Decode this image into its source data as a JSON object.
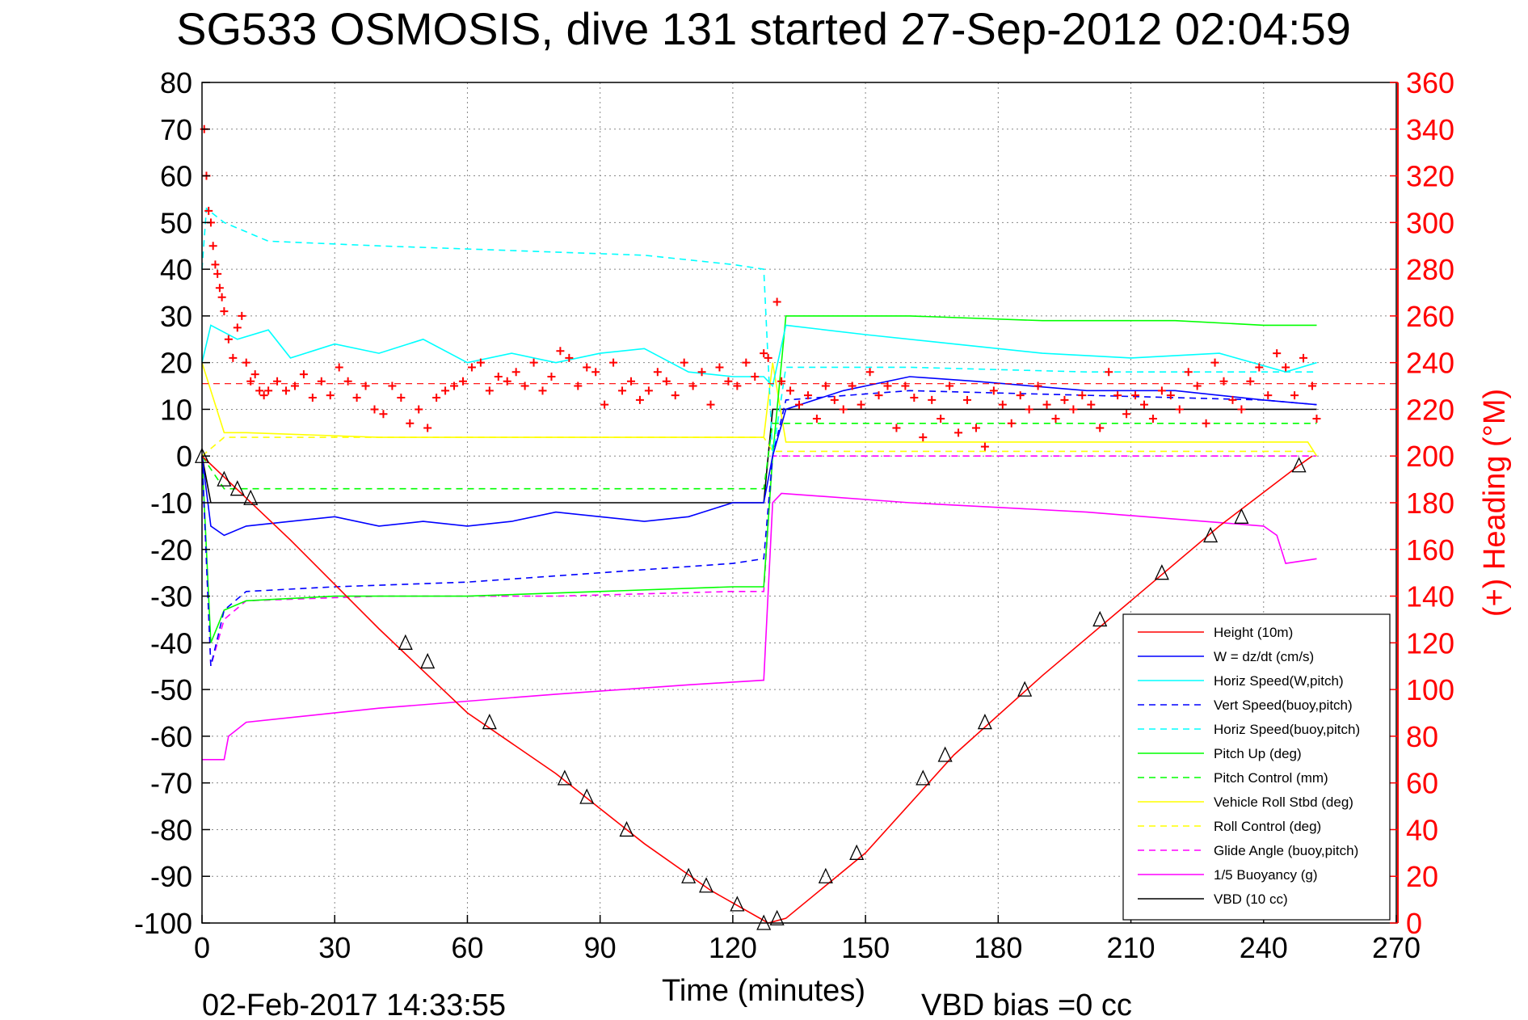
{
  "chart_data": {
    "type": "line",
    "title": "SG533 OSMOSIS, dive 131 started 27-Sep-2012 02:04:59",
    "xlabel": "Time (minutes)",
    "ylabel": "",
    "y2label": "(+) Heading (°M)",
    "xlim": [
      0,
      270
    ],
    "ylim": [
      -100,
      80
    ],
    "y2lim": [
      0,
      360
    ],
    "xticks": [
      "0",
      "30",
      "60",
      "90",
      "120",
      "150",
      "180",
      "210",
      "240",
      "270"
    ],
    "yticks": [
      "80",
      "70",
      "60",
      "50",
      "40",
      "30",
      "20",
      "10",
      "0",
      "-10",
      "-20",
      "-30",
      "-40",
      "-50",
      "-60",
      "-70",
      "-80",
      "-90",
      "-100"
    ],
    "y2ticks": [
      "360",
      "340",
      "320",
      "300",
      "280",
      "260",
      "240",
      "220",
      "200",
      "180",
      "160",
      "140",
      "120",
      "100",
      "80",
      "60",
      "40",
      "20",
      "0"
    ],
    "grid": true,
    "legend_position": "bottom-right",
    "footer_left": "02-Feb-2017 14:33:55",
    "footer_right": "VBD bias =0 cc",
    "colors": {
      "height": "#ff0000",
      "w": "#0000ff",
      "horiz_speed": "#00ffff",
      "pitch": "#00ff00",
      "roll": "#ffff00",
      "glide": "#ff00ff",
      "buoyancy": "#ff00ff",
      "vbd": "#000000",
      "heading": "#ff0000"
    },
    "series": [
      {
        "name": "Height (10m)",
        "color": "#ff0000",
        "dash": "solid",
        "x": [
          0,
          10,
          20,
          40,
          60,
          80,
          100,
          115,
          128,
          132,
          150,
          170,
          190,
          210,
          230,
          248,
          251
        ],
        "y": [
          0,
          -9,
          -18,
          -37,
          -55,
          -68,
          -83,
          -93,
          -100,
          -99,
          -85,
          -64,
          -47,
          -31,
          -15,
          -2,
          0
        ]
      },
      {
        "name": "W = dz/dt (cm/s)",
        "color": "#0000ff",
        "dash": "solid",
        "x": [
          0,
          2,
          5,
          10,
          20,
          30,
          40,
          50,
          60,
          70,
          80,
          90,
          100,
          110,
          120,
          127,
          129,
          132,
          145,
          160,
          175,
          200,
          220,
          240,
          252
        ],
        "y": [
          0,
          -15,
          -17,
          -15,
          -14,
          -13,
          -15,
          -14,
          -15,
          -14,
          -12,
          -13,
          -14,
          -13,
          -10,
          -10,
          0,
          10,
          14,
          17,
          16,
          14,
          14,
          12,
          11
        ]
      },
      {
        "name": "Horiz Speed(W,pitch)",
        "color": "#00ffff",
        "dash": "solid",
        "x": [
          0,
          2,
          8,
          15,
          20,
          30,
          40,
          50,
          60,
          70,
          80,
          90,
          100,
          110,
          120,
          127,
          129,
          132,
          150,
          170,
          190,
          210,
          230,
          245,
          252
        ],
        "y": [
          20,
          28,
          25,
          27,
          21,
          24,
          22,
          25,
          20,
          22,
          20,
          22,
          23,
          18,
          17,
          17,
          15,
          28,
          26,
          24,
          22,
          21,
          22,
          18,
          20
        ]
      },
      {
        "name": "Vert Speed(buoy,pitch)",
        "color": "#0000ff",
        "dash": "dashed",
        "x": [
          0,
          2,
          5,
          10,
          30,
          60,
          90,
          120,
          127,
          129,
          132,
          160,
          200,
          240,
          252
        ],
        "y": [
          0,
          -45,
          -33,
          -29,
          -28,
          -27,
          -25,
          -23,
          -22,
          0,
          12,
          14,
          13,
          12,
          11
        ]
      },
      {
        "name": "Horiz Speed(buoy,pitch)",
        "color": "#00ffff",
        "dash": "dashed",
        "x": [
          0,
          1,
          5,
          15,
          40,
          70,
          100,
          120,
          127,
          129,
          132,
          160,
          200,
          240,
          252
        ],
        "y": [
          40,
          53,
          50,
          46,
          45,
          44,
          43,
          41,
          40,
          0,
          19,
          19,
          18,
          18,
          18
        ]
      },
      {
        "name": "Pitch Up (deg)",
        "color": "#00ff00",
        "dash": "solid",
        "x": [
          0,
          2,
          5,
          10,
          30,
          60,
          90,
          120,
          127,
          129,
          132,
          160,
          190,
          220,
          240,
          252
        ],
        "y": [
          0,
          -40,
          -33,
          -31,
          -30,
          -30,
          -29,
          -28,
          -28,
          0,
          30,
          30,
          29,
          29,
          28,
          28
        ]
      },
      {
        "name": "Pitch Control (mm)",
        "color": "#00ff00",
        "dash": "dashed",
        "x": [
          0,
          5,
          127,
          129,
          252
        ],
        "y": [
          0,
          -7,
          -7,
          7,
          7
        ]
      },
      {
        "name": "Vehicle Roll Stbd (deg)",
        "color": "#ffff00",
        "dash": "solid",
        "x": [
          0,
          5,
          10,
          40,
          70,
          100,
          127,
          129,
          132,
          160,
          190,
          220,
          250,
          252
        ],
        "y": [
          20,
          5,
          5,
          4,
          4,
          4,
          4,
          20,
          3,
          3,
          3,
          3,
          3,
          0
        ]
      },
      {
        "name": "Roll Control (deg)",
        "color": "#ffff00",
        "dash": "dashed",
        "x": [
          0,
          5,
          127,
          129,
          252
        ],
        "y": [
          0,
          4,
          4,
          1,
          1
        ]
      },
      {
        "name": "Glide Angle (buoy,pitch)",
        "color": "#ff00ff",
        "dash": "dashed",
        "x": [
          0,
          2,
          5,
          10,
          40,
          80,
          120,
          127,
          129,
          132,
          252
        ],
        "y": [
          0,
          -45,
          -35,
          -31,
          -30,
          -30,
          -29,
          -29,
          0,
          0,
          0
        ]
      },
      {
        "name": "1/5 Buoyancy (g)",
        "color": "#ff00ff",
        "dash": "solid",
        "x": [
          0,
          1,
          5,
          6,
          10,
          40,
          80,
          110,
          127,
          129,
          131,
          160,
          200,
          240,
          243,
          245,
          252
        ],
        "y": [
          -65,
          -65,
          -65,
          -60,
          -57,
          -54,
          -51,
          -49,
          -48,
          -10,
          -8,
          -10,
          -12,
          -15,
          -17,
          -23,
          -22
        ]
      },
      {
        "name": "VBD (10 cc)",
        "color": "#000000",
        "dash": "solid",
        "x": [
          0,
          2,
          127,
          129,
          252
        ],
        "y": [
          0,
          -10,
          -10,
          10,
          10
        ]
      }
    ],
    "heading": {
      "name": "Heading (+)",
      "axis": "right",
      "color": "#ff0000",
      "marker": "+",
      "reference_value": 231,
      "x": [
        0.5,
        1,
        1.5,
        2,
        2.5,
        3,
        3.5,
        4,
        4.5,
        5,
        6,
        7,
        8,
        9,
        10,
        11,
        12,
        13,
        14,
        15,
        17,
        19,
        21,
        23,
        25,
        27,
        29,
        31,
        33,
        35,
        37,
        39,
        41,
        43,
        45,
        47,
        49,
        51,
        53,
        55,
        57,
        59,
        61,
        63,
        65,
        67,
        69,
        71,
        73,
        75,
        77,
        79,
        81,
        83,
        85,
        87,
        89,
        91,
        93,
        95,
        97,
        99,
        101,
        103,
        105,
        107,
        109,
        111,
        113,
        115,
        117,
        119,
        121,
        123,
        125,
        127,
        128,
        130,
        131,
        133,
        135,
        137,
        139,
        141,
        143,
        145,
        147,
        149,
        151,
        153,
        155,
        157,
        159,
        161,
        163,
        165,
        167,
        169,
        171,
        173,
        175,
        177,
        179,
        181,
        183,
        185,
        187,
        189,
        191,
        193,
        195,
        197,
        199,
        201,
        203,
        205,
        207,
        209,
        211,
        213,
        215,
        217,
        219,
        221,
        223,
        225,
        227,
        229,
        231,
        233,
        235,
        237,
        239,
        241,
        243,
        245,
        247,
        249,
        251,
        252
      ],
      "y": [
        340,
        320,
        305,
        300,
        290,
        282,
        278,
        272,
        268,
        262,
        250,
        242,
        255,
        260,
        240,
        232,
        235,
        228,
        226,
        228,
        232,
        228,
        230,
        235,
        225,
        232,
        226,
        238,
        232,
        225,
        230,
        220,
        218,
        230,
        225,
        214,
        220,
        212,
        225,
        228,
        230,
        232,
        238,
        240,
        228,
        234,
        232,
        236,
        230,
        240,
        228,
        234,
        245,
        242,
        230,
        238,
        236,
        222,
        240,
        228,
        232,
        224,
        228,
        236,
        232,
        226,
        240,
        230,
        236,
        222,
        238,
        232,
        230,
        240,
        234,
        244,
        242,
        266,
        232,
        228,
        222,
        226,
        216,
        230,
        224,
        220,
        230,
        222,
        236,
        226,
        230,
        212,
        230,
        225,
        208,
        224,
        216,
        230,
        210,
        224,
        212,
        204,
        228,
        222,
        214,
        226,
        220,
        230,
        222,
        216,
        224,
        220,
        226,
        222,
        212,
        236,
        226,
        218,
        226,
        222,
        216,
        228,
        226,
        220,
        236,
        230,
        214,
        240,
        232,
        224,
        220,
        232,
        238,
        226,
        244,
        238,
        226,
        242,
        230,
        216
      ]
    },
    "depth_markers": {
      "color": "#000000",
      "x": [
        0,
        5,
        8,
        11,
        46,
        51,
        65,
        82,
        87,
        96,
        110,
        114,
        121,
        127,
        130,
        141,
        148,
        163,
        168,
        177,
        186,
        203,
        217,
        228,
        235,
        248
      ],
      "y": [
        0,
        -5,
        -7,
        -9,
        -40,
        -44,
        -57,
        -69,
        -73,
        -80,
        -90,
        -92,
        -96,
        -100,
        -99,
        -90,
        -85,
        -69,
        -64,
        -57,
        -50,
        -35,
        -25,
        -17,
        -13,
        -2
      ]
    }
  }
}
